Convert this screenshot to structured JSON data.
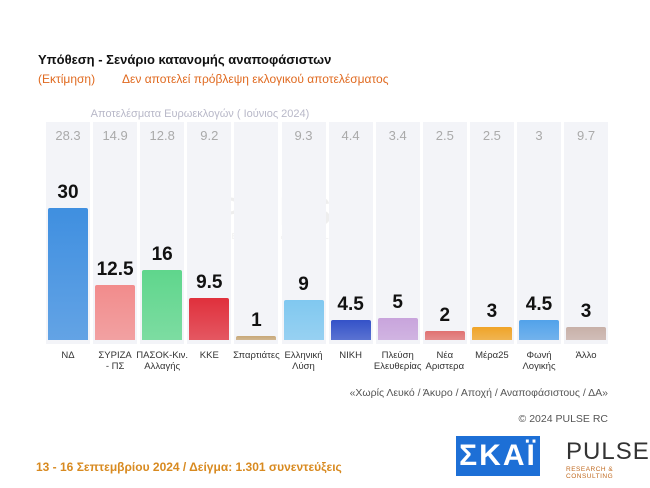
{
  "chart_data": {
    "type": "bar",
    "title": "Υπόθεση - Σενάριο κατανομής αναποφάσιστων",
    "subtitle": "(Εκτίμηση)",
    "disclaimer": "Δεν αποτελεί πρόβλεψη εκλογικού αποτελέσματος",
    "reference_label": "Αποτελέσματα Ευρωεκλογών ( Ιούνιος 2024)",
    "categories": [
      "ΝΔ",
      "ΣΥΡΙΖΑ\n- ΠΣ",
      "ΠΑΣΟΚ-Κιν.\nΑλλαγής",
      "ΚΚΕ",
      "Σπαρτιάτες",
      "Ελληνική\nΛύση",
      "ΝΙΚΗ",
      "Πλεύση\nΕλευθερίας",
      "Νέα\nΑριστερα",
      "Μέρα25",
      "Φωνή\nΛογικής",
      "Άλλο"
    ],
    "values": [
      30,
      12.5,
      16,
      9.5,
      1,
      9,
      4.5,
      5,
      2,
      3,
      4.5,
      3
    ],
    "reference_values": [
      28.3,
      14.9,
      12.8,
      9.2,
      null,
      9.3,
      4.4,
      3.4,
      2.5,
      2.5,
      3,
      9.7
    ],
    "colors": [
      "#3f8fe0",
      "#f28c8c",
      "#5fd68c",
      "#e0303c",
      "#c8a878",
      "#80c8f0",
      "#3452c8",
      "#c8a4dc",
      "#e07272",
      "#f0a428",
      "#52a2ea",
      "#c8b0a8"
    ],
    "note": "«Χωρίς Λευκό / Άκυρο / Αποχή / Αναποφάσιστους / ΔΑ»",
    "copyright": "© 2024 PULSE RC",
    "survey_info": "13 - 16 Σεπτεμβρίου 2024  /  Δείγμα:  1.301 συνεντεύξεις"
  },
  "brand": {
    "channel": "ΣΚΑΪ",
    "watermark": "PULSE",
    "tagline": "RESEARCH & CONSULTING"
  }
}
